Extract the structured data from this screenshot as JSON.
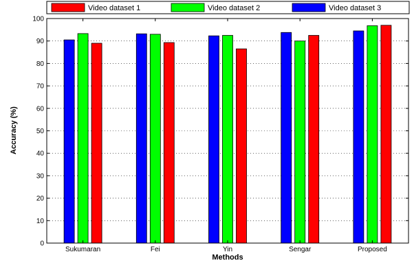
{
  "chart_data": {
    "type": "bar",
    "categories": [
      "Sukumaran",
      "Fei",
      "Yin",
      "Sengar",
      "Proposed"
    ],
    "series": [
      {
        "name": "Video dataset 3",
        "color": "#0000ff",
        "values": [
          90.5,
          93.2,
          92.3,
          93.8,
          94.5
        ]
      },
      {
        "name": "Video dataset 2",
        "color": "#00ff00",
        "values": [
          93.3,
          93.0,
          92.5,
          90.0,
          96.8
        ]
      },
      {
        "name": "Video dataset 1",
        "color": "#ff0000",
        "values": [
          89.0,
          89.3,
          86.5,
          92.5,
          97.0
        ]
      }
    ],
    "legend_order": [
      "Video dataset 1",
      "Video dataset 2",
      "Video dataset 3"
    ],
    "xlabel": "Methods",
    "ylabel": "Accuracy (%)",
    "ylim": [
      0,
      100
    ],
    "yticks": [
      0,
      10,
      20,
      30,
      40,
      50,
      60,
      70,
      80,
      90,
      100
    ],
    "grid": true,
    "legend_position": "top"
  }
}
